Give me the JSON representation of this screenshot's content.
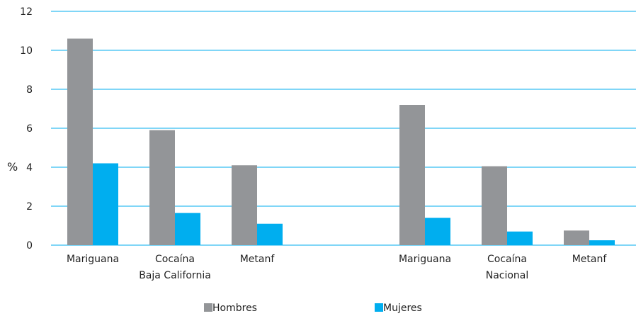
{
  "chart_data": {
    "type": "bar",
    "ylabel": "%",
    "ylim": [
      0,
      12
    ],
    "yticks": [
      0,
      2,
      4,
      6,
      8,
      10,
      12
    ],
    "grid": true,
    "legend_position": "bottom",
    "groups": [
      {
        "label": "Baja California",
        "categories": [
          "Mariguana",
          "Cocaína",
          "Metanf"
        ]
      },
      {
        "label": "Nacional",
        "categories": [
          "Mariguana",
          "Cocaína",
          "Metanf"
        ]
      }
    ],
    "categories": [
      "Mariguana",
      "Cocaína",
      "Metanf",
      "Mariguana",
      "Cocaína",
      "Metanf"
    ],
    "series": [
      {
        "name": "Hombres",
        "color": "#939598",
        "values": [
          10.6,
          5.9,
          4.1,
          7.2,
          4.05,
          0.75
        ]
      },
      {
        "name": "Mujeres",
        "color": "#00AEEF",
        "values": [
          4.2,
          1.65,
          1.1,
          1.4,
          0.7,
          0.25
        ]
      }
    ],
    "gridline_color": "#00AEEF"
  }
}
